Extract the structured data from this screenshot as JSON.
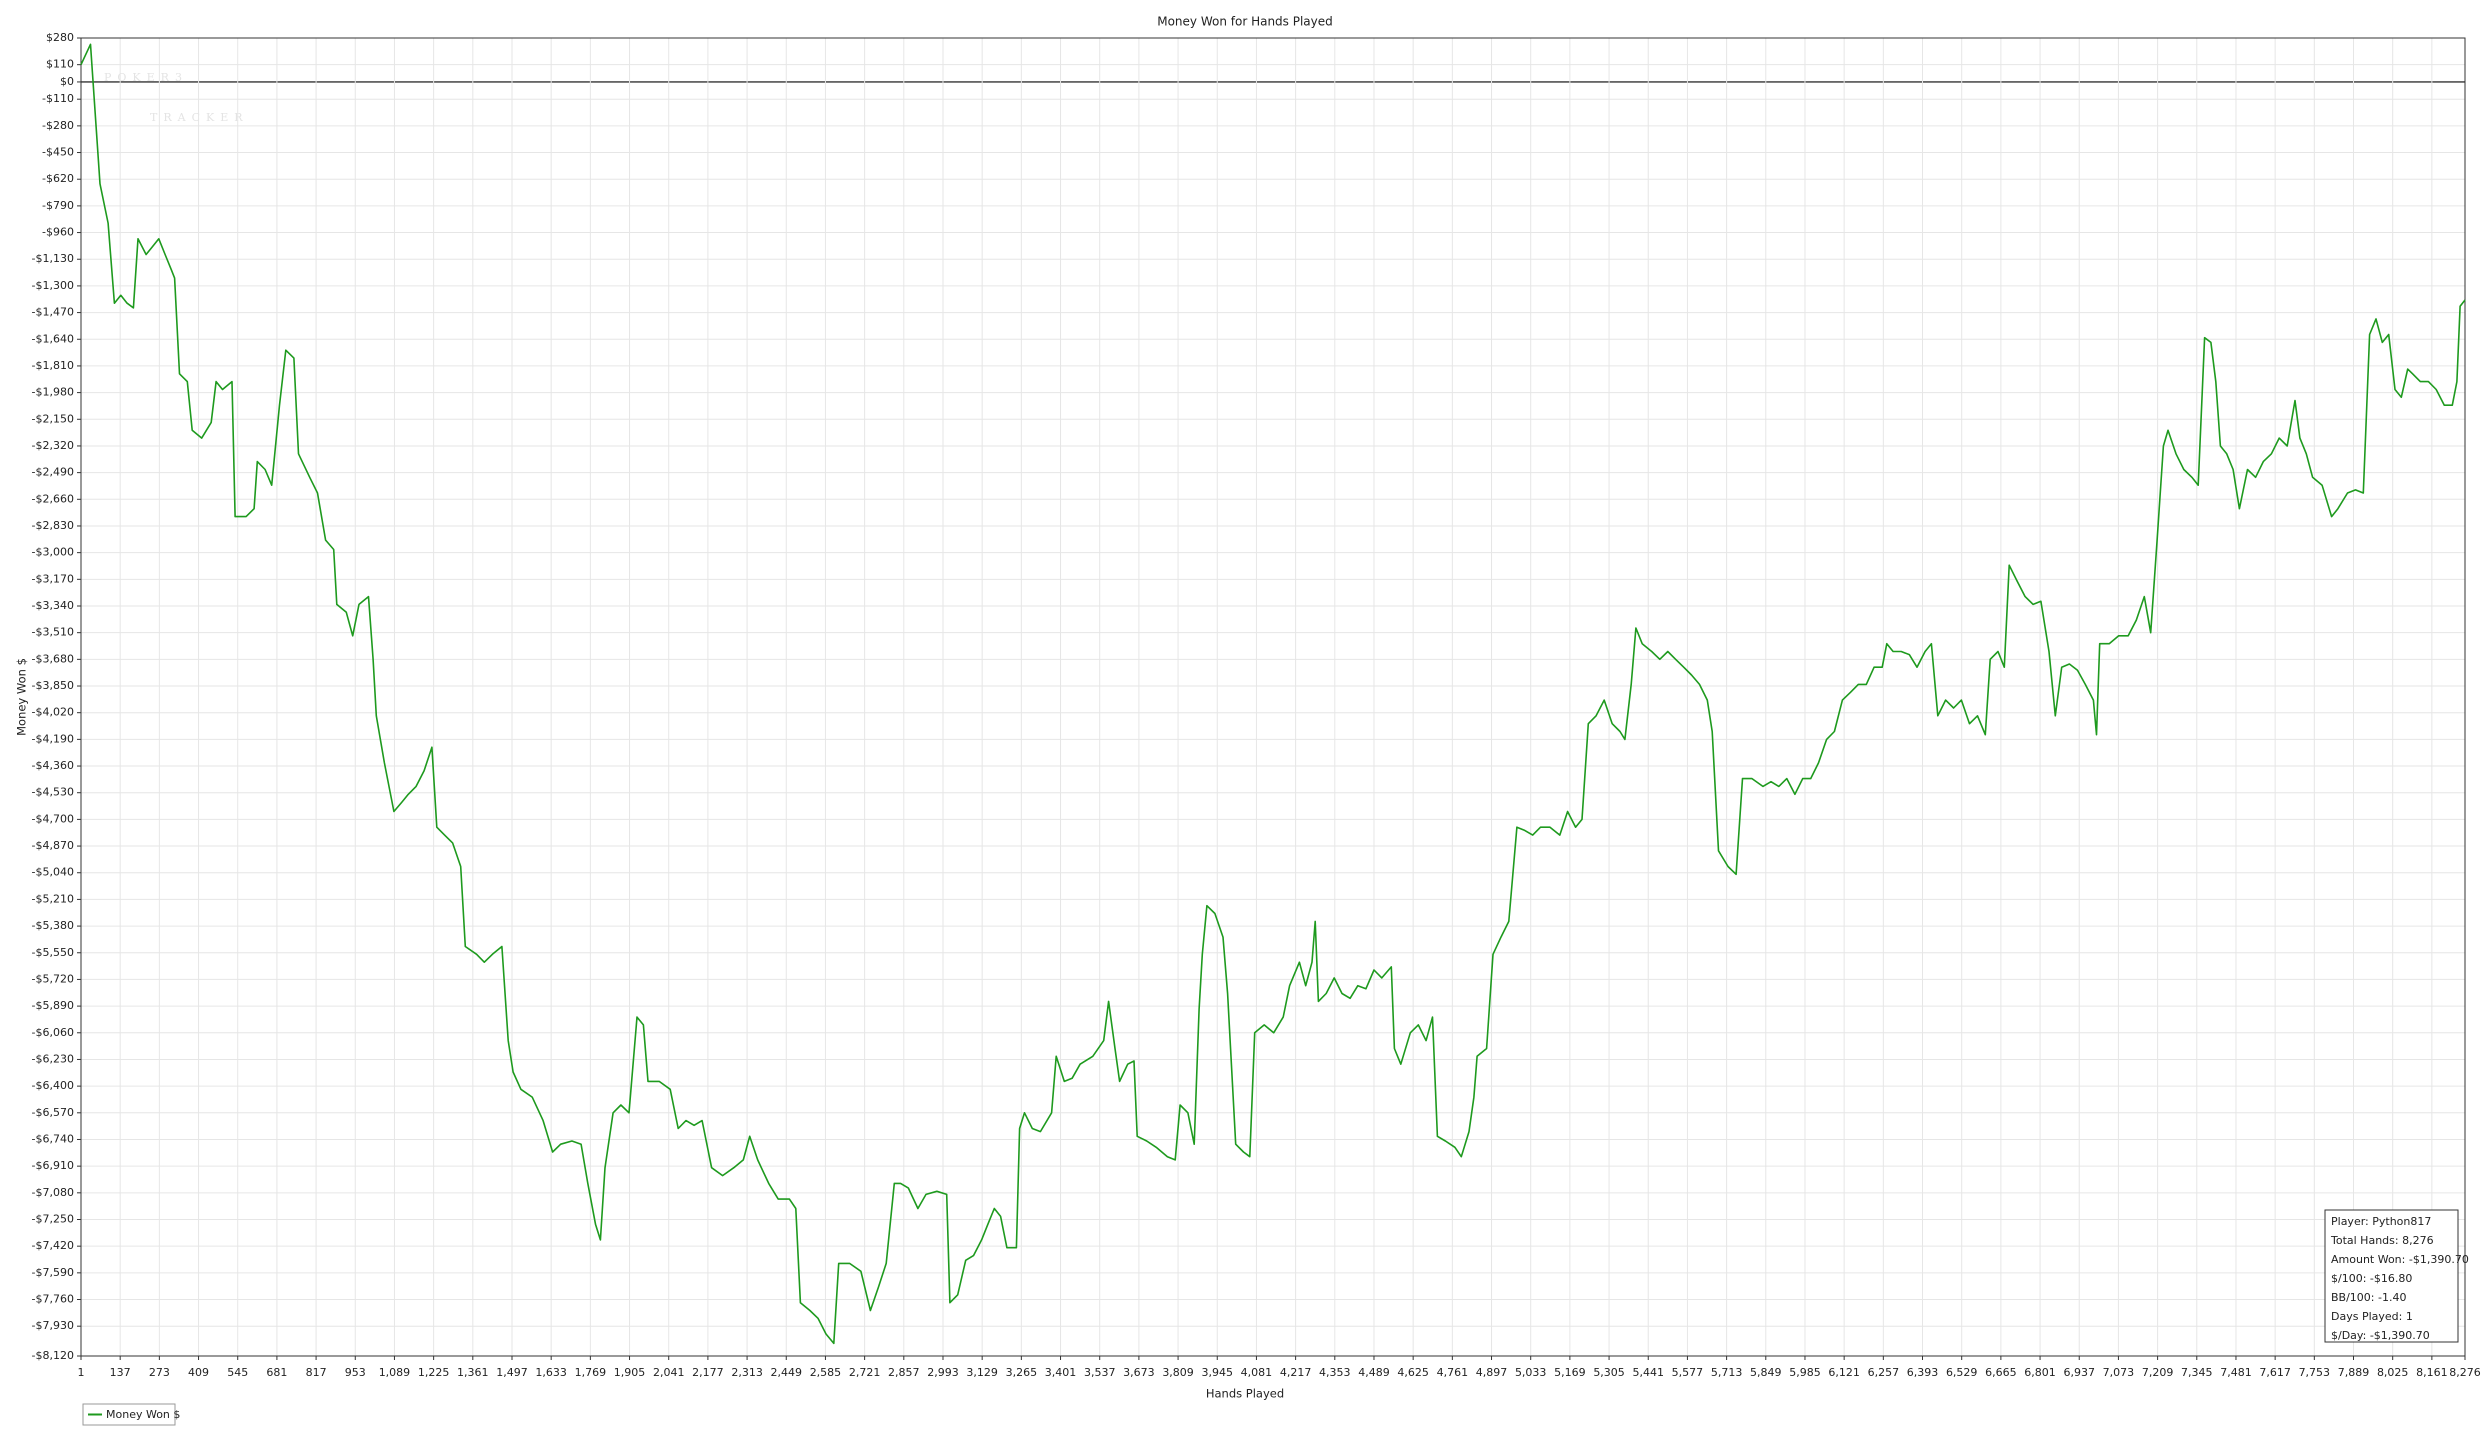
{
  "chart_data": {
    "type": "line",
    "title": "Money Won for Hands Played",
    "x_label": "Hands Played",
    "y_label": "Money Won $",
    "watermark": [
      "POKER3",
      "TRACKER"
    ],
    "grid": true,
    "legend": "bottom-left",
    "x": [
      1,
      34,
      67,
      95,
      117,
      139,
      161,
      183,
      199,
      227,
      249,
      271,
      293,
      315,
      326,
      343,
      370,
      387,
      420,
      453,
      470,
      492,
      525,
      536,
      574,
      602,
      613,
      640,
      663,
      690,
      712,
      740,
      756,
      795,
      822,
      850,
      878,
      889,
      922,
      944,
      966,
      999,
      1015,
      1026,
      1054,
      1087,
      1115,
      1137,
      1164,
      1192,
      1219,
      1236,
      1263,
      1291,
      1319,
      1335,
      1374,
      1401,
      1429,
      1462,
      1484,
      1501,
      1528,
      1567,
      1605,
      1638,
      1666,
      1705,
      1737,
      1760,
      1787,
      1804,
      1820,
      1848,
      1875,
      1903,
      1931,
      1953,
      1969,
      2008,
      2046,
      2074,
      2101,
      2129,
      2157,
      2190,
      2228,
      2267,
      2300,
      2322,
      2350,
      2388,
      2421,
      2460,
      2482,
      2498,
      2531,
      2559,
      2587,
      2614,
      2631,
      2669,
      2708,
      2741,
      2769,
      2796,
      2824,
      2846,
      2873,
      2906,
      2934,
      2972,
      3006,
      3017,
      3044,
      3072,
      3099,
      3127,
      3149,
      3171,
      3193,
      3215,
      3248,
      3259,
      3276,
      3303,
      3331,
      3370,
      3386,
      3414,
      3441,
      3469,
      3513,
      3551,
      3568,
      3590,
      3606,
      3634,
      3656,
      3667,
      3700,
      3733,
      3772,
      3799,
      3816,
      3843,
      3865,
      3882,
      3893,
      3909,
      3937,
      3965,
      3981,
      4009,
      4036,
      4058,
      4075,
      4108,
      4141,
      4174,
      4196,
      4230,
      4252,
      4274,
      4285,
      4296,
      4323,
      4351,
      4378,
      4406,
      4433,
      4461,
      4489,
      4516,
      4549,
      4560,
      4582,
      4615,
      4643,
      4670,
      4692,
      4709,
      4737,
      4770,
      4792,
      4819,
      4836,
      4847,
      4880,
      4902,
      4930,
      4957,
      4985,
      5012,
      5040,
      5067,
      5100,
      5134,
      5161,
      5189,
      5211,
      5233,
      5260,
      5288,
      5316,
      5343,
      5360,
      5382,
      5398,
      5420,
      5453,
      5481,
      5509,
      5536,
      5564,
      5591,
      5619,
      5646,
      5663,
      5685,
      5718,
      5746,
      5768,
      5801,
      5839,
      5867,
      5894,
      5922,
      5950,
      5977,
      6005,
      6032,
      6060,
      6087,
      6115,
      6143,
      6170,
      6198,
      6225,
      6253,
      6269,
      6291,
      6319,
      6347,
      6374,
      6402,
      6424,
      6446,
      6473,
      6501,
      6528,
      6556,
      6584,
      6611,
      6628,
      6655,
      6677,
      6694,
      6721,
      6749,
      6777,
      6804,
      6832,
      6854,
      6876,
      6903,
      6931,
      6958,
      6986,
      6997,
      7008,
      7041,
      7074,
      7107,
      7135,
      7163,
      7185,
      7207,
      7229,
      7245,
      7273,
      7300,
      7328,
      7350,
      7372,
      7394,
      7411,
      7427,
      7449,
      7471,
      7493,
      7521,
      7549,
      7576,
      7604,
      7631,
      7659,
      7686,
      7703,
      7725,
      7747,
      7780,
      7813,
      7835,
      7868,
      7896,
      7923,
      7945,
      7967,
      7989,
      8011,
      8033,
      8055,
      8077,
      8094,
      8121,
      8149,
      8176,
      8204,
      8232,
      8248,
      8259,
      8276
    ],
    "series": [
      {
        "name": "Money Won $",
        "color": "#1e9a1e",
        "values": [
          110,
          240,
          -650,
          -900,
          -1410,
          -1360,
          -1410,
          -1440,
          -1000,
          -1100,
          -1050,
          -1000,
          -1100,
          -1200,
          -1250,
          -1860,
          -1910,
          -2220,
          -2270,
          -2170,
          -1910,
          -1960,
          -1910,
          -2770,
          -2770,
          -2720,
          -2420,
          -2470,
          -2570,
          -2060,
          -1710,
          -1760,
          -2370,
          -2520,
          -2620,
          -2920,
          -2980,
          -3330,
          -3380,
          -3530,
          -3330,
          -3280,
          -3680,
          -4040,
          -4340,
          -4650,
          -4590,
          -4540,
          -4490,
          -4390,
          -4240,
          -4750,
          -4800,
          -4850,
          -5000,
          -5510,
          -5560,
          -5610,
          -5560,
          -5510,
          -6110,
          -6310,
          -6420,
          -6470,
          -6620,
          -6820,
          -6770,
          -6750,
          -6770,
          -7020,
          -7280,
          -7380,
          -6920,
          -6570,
          -6520,
          -6570,
          -5960,
          -6010,
          -6370,
          -6370,
          -6420,
          -6670,
          -6620,
          -6650,
          -6620,
          -6920,
          -6970,
          -6920,
          -6870,
          -6720,
          -6870,
          -7020,
          -7120,
          -7120,
          -7180,
          -7780,
          -7830,
          -7880,
          -7980,
          -8040,
          -7530,
          -7530,
          -7580,
          -7830,
          -7680,
          -7530,
          -7020,
          -7020,
          -7050,
          -7180,
          -7090,
          -7070,
          -7090,
          -7780,
          -7730,
          -7510,
          -7480,
          -7380,
          -7280,
          -7180,
          -7230,
          -7430,
          -7430,
          -6670,
          -6570,
          -6670,
          -6690,
          -6570,
          -6210,
          -6370,
          -6350,
          -6260,
          -6210,
          -6110,
          -5860,
          -6160,
          -6370,
          -6260,
          -6240,
          -6720,
          -6750,
          -6790,
          -6850,
          -6870,
          -6520,
          -6570,
          -6770,
          -5910,
          -5560,
          -5250,
          -5300,
          -5450,
          -5810,
          -6770,
          -6820,
          -6850,
          -6060,
          -6010,
          -6060,
          -5960,
          -5760,
          -5610,
          -5760,
          -5610,
          -5350,
          -5860,
          -5810,
          -5710,
          -5810,
          -5840,
          -5760,
          -5780,
          -5660,
          -5710,
          -5640,
          -6160,
          -6260,
          -6060,
          -6010,
          -6110,
          -5960,
          -6720,
          -6750,
          -6790,
          -6850,
          -6690,
          -6470,
          -6210,
          -6160,
          -5560,
          -5450,
          -5350,
          -4750,
          -4770,
          -4800,
          -4750,
          -4750,
          -4800,
          -4650,
          -4750,
          -4700,
          -4090,
          -4040,
          -3940,
          -4090,
          -4140,
          -4190,
          -3840,
          -3480,
          -3580,
          -3630,
          -3680,
          -3630,
          -3680,
          -3730,
          -3780,
          -3840,
          -3940,
          -4140,
          -4900,
          -5000,
          -5050,
          -4440,
          -4440,
          -4490,
          -4460,
          -4490,
          -4440,
          -4540,
          -4440,
          -4440,
          -4340,
          -4190,
          -4140,
          -3940,
          -3890,
          -3840,
          -3840,
          -3730,
          -3730,
          -3580,
          -3630,
          -3630,
          -3650,
          -3730,
          -3630,
          -3580,
          -4040,
          -3940,
          -3990,
          -3940,
          -4090,
          -4040,
          -4160,
          -3680,
          -3630,
          -3730,
          -3080,
          -3180,
          -3280,
          -3330,
          -3310,
          -3630,
          -4040,
          -3730,
          -3710,
          -3750,
          -3840,
          -3940,
          -4160,
          -3580,
          -3580,
          -3530,
          -3530,
          -3430,
          -3280,
          -3510,
          -2930,
          -2320,
          -2220,
          -2370,
          -2470,
          -2520,
          -2570,
          -1630,
          -1660,
          -1910,
          -2320,
          -2370,
          -2470,
          -2720,
          -2470,
          -2520,
          -2420,
          -2370,
          -2270,
          -2320,
          -2030,
          -2270,
          -2370,
          -2520,
          -2570,
          -2770,
          -2720,
          -2620,
          -2600,
          -2620,
          -1610,
          -1510,
          -1660,
          -1610,
          -1960,
          -2010,
          -1830,
          -1860,
          -1910,
          -1910,
          -1960,
          -2060,
          -2060,
          -1910,
          -1430,
          -1390
        ]
      }
    ],
    "xlim": [
      1,
      8276
    ],
    "ylim": [
      -8120,
      280
    ],
    "xticks": [
      1,
      137,
      273,
      409,
      545,
      681,
      817,
      953,
      {
        "value": 1089,
        "label": "1,089"
      },
      {
        "value": 1225,
        "label": "1,225"
      },
      {
        "value": 1361,
        "label": "1,361"
      },
      {
        "value": 1497,
        "label": "1,497"
      },
      {
        "value": 1633,
        "label": "1,633"
      },
      {
        "value": 1769,
        "label": "1,769"
      },
      {
        "value": 1905,
        "label": "1,905"
      },
      {
        "value": 2041,
        "label": "2,041"
      },
      {
        "value": 2177,
        "label": "2,177"
      },
      {
        "value": 2313,
        "label": "2,313"
      },
      {
        "value": 2449,
        "label": "2,449"
      },
      {
        "value": 2585,
        "label": "2,585"
      },
      {
        "value": 2721,
        "label": "2,721"
      },
      {
        "value": 2857,
        "label": "2,857"
      },
      {
        "value": 2993,
        "label": "2,993"
      },
      {
        "value": 3129,
        "label": "3,129"
      },
      {
        "value": 3265,
        "label": "3,265"
      },
      {
        "value": 3401,
        "label": "3,401"
      },
      {
        "value": 3537,
        "label": "3,537"
      },
      {
        "value": 3673,
        "label": "3,673"
      },
      {
        "value": 3809,
        "label": "3,809"
      },
      {
        "value": 3945,
        "label": "3,945"
      },
      {
        "value": 4081,
        "label": "4,081"
      },
      {
        "value": 4217,
        "label": "4,217"
      },
      {
        "value": 4353,
        "label": "4,353"
      },
      {
        "value": 4489,
        "label": "4,489"
      },
      {
        "value": 4625,
        "label": "4,625"
      },
      {
        "value": 4761,
        "label": "4,761"
      },
      {
        "value": 4897,
        "label": "4,897"
      },
      {
        "value": 5033,
        "label": "5,033"
      },
      {
        "value": 5169,
        "label": "5,169"
      },
      {
        "value": 5305,
        "label": "5,305"
      },
      {
        "value": 5441,
        "label": "5,441"
      },
      {
        "value": 5577,
        "label": "5,577"
      },
      {
        "value": 5713,
        "label": "5,713"
      },
      {
        "value": 5849,
        "label": "5,849"
      },
      {
        "value": 5985,
        "label": "5,985"
      },
      {
        "value": 6121,
        "label": "6,121"
      },
      {
        "value": 6257,
        "label": "6,257"
      },
      {
        "value": 6393,
        "label": "6,393"
      },
      {
        "value": 6529,
        "label": "6,529"
      },
      {
        "value": 6665,
        "label": "6,665"
      },
      {
        "value": 6801,
        "label": "6,801"
      },
      {
        "value": 6937,
        "label": "6,937"
      },
      {
        "value": 7073,
        "label": "7,073"
      },
      {
        "value": 7209,
        "label": "7,209"
      },
      {
        "value": 7345,
        "label": "7,345"
      },
      {
        "value": 7481,
        "label": "7,481"
      },
      {
        "value": 7617,
        "label": "7,617"
      },
      {
        "value": 7753,
        "label": "7,753"
      },
      {
        "value": 7889,
        "label": "7,889"
      },
      {
        "value": 8025,
        "label": "8,025"
      },
      {
        "value": 8161,
        "label": "8,161"
      },
      {
        "value": 8276,
        "label": "8,276"
      }
    ],
    "yticks": [
      {
        "value": 280,
        "label": "$280"
      },
      {
        "value": 110,
        "label": "$110"
      },
      {
        "value": 0,
        "label": "$0"
      },
      {
        "value": -110,
        "label": "-$110"
      },
      {
        "value": -280,
        "label": "-$280"
      },
      {
        "value": -450,
        "label": "-$450"
      },
      {
        "value": -620,
        "label": "-$620"
      },
      {
        "value": -790,
        "label": "-$790"
      },
      {
        "value": -960,
        "label": "-$960"
      },
      {
        "value": -1130,
        "label": "-$1,130"
      },
      {
        "value": -1300,
        "label": "-$1,300"
      },
      {
        "value": -1470,
        "label": "-$1,470"
      },
      {
        "value": -1640,
        "label": "-$1,640"
      },
      {
        "value": -1810,
        "label": "-$1,810"
      },
      {
        "value": -1980,
        "label": "-$1,980"
      },
      {
        "value": -2150,
        "label": "-$2,150"
      },
      {
        "value": -2320,
        "label": "-$2,320"
      },
      {
        "value": -2490,
        "label": "-$2,490"
      },
      {
        "value": -2660,
        "label": "-$2,660"
      },
      {
        "value": -2830,
        "label": "-$2,830"
      },
      {
        "value": -3000,
        "label": "-$3,000"
      },
      {
        "value": -3170,
        "label": "-$3,170"
      },
      {
        "value": -3340,
        "label": "-$3,340"
      },
      {
        "value": -3510,
        "label": "-$3,510"
      },
      {
        "value": -3680,
        "label": "-$3,680"
      },
      {
        "value": -3850,
        "label": "-$3,850"
      },
      {
        "value": -4020,
        "label": "-$4,020"
      },
      {
        "value": -4190,
        "label": "-$4,190"
      },
      {
        "value": -4360,
        "label": "-$4,360"
      },
      {
        "value": -4530,
        "label": "-$4,530"
      },
      {
        "value": -4700,
        "label": "-$4,700"
      },
      {
        "value": -4870,
        "label": "-$4,870"
      },
      {
        "value": -5040,
        "label": "-$5,040"
      },
      {
        "value": -5210,
        "label": "-$5,210"
      },
      {
        "value": -5380,
        "label": "-$5,380"
      },
      {
        "value": -5550,
        "label": "-$5,550"
      },
      {
        "value": -5720,
        "label": "-$5,720"
      },
      {
        "value": -5890,
        "label": "-$5,890"
      },
      {
        "value": -6060,
        "label": "-$6,060"
      },
      {
        "value": -6230,
        "label": "-$6,230"
      },
      {
        "value": -6400,
        "label": "-$6,400"
      },
      {
        "value": -6570,
        "label": "-$6,570"
      },
      {
        "value": -6740,
        "label": "-$6,740"
      },
      {
        "value": -6910,
        "label": "-$6,910"
      },
      {
        "value": -7080,
        "label": "-$7,080"
      },
      {
        "value": -7250,
        "label": "-$7,250"
      },
      {
        "value": -7420,
        "label": "-$7,420"
      },
      {
        "value": -7590,
        "label": "-$7,590"
      },
      {
        "value": -7760,
        "label": "-$7,760"
      },
      {
        "value": -7930,
        "label": "-$7,930"
      },
      {
        "value": -8120,
        "label": "-$8,120"
      }
    ],
    "stats": [
      "Player: Python817",
      "Total Hands: 8,276",
      "Amount Won: -$1,390.70",
      "$/100: -$16.80",
      "BB/100: -1.40",
      "Days Played: 1",
      "$/Day: -$1,390.70"
    ]
  }
}
